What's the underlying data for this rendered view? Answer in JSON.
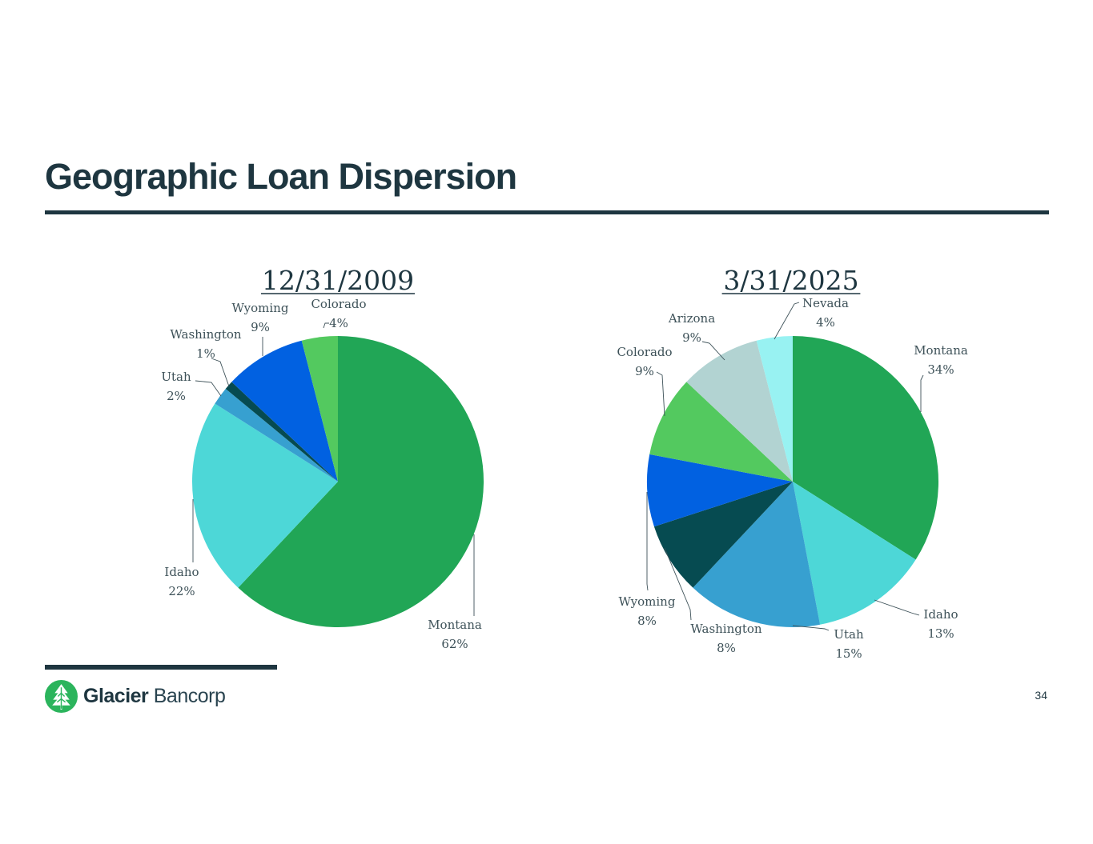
{
  "page": {
    "title": "Geographic Loan Dispersion",
    "page_number": "34"
  },
  "logo": {
    "name_bold": "Glacier",
    "name_light": "Bancorp",
    "icon": "tree-icon",
    "color": "#2bb45c"
  },
  "chart_data": [
    {
      "type": "pie",
      "title": "12/31/2009",
      "start": "12-o'clock",
      "direction": "clockwise",
      "slices": [
        {
          "label": "Montana",
          "value": 62,
          "pct": "62%",
          "color": "#21a656"
        },
        {
          "label": "Idaho",
          "value": 22,
          "pct": "22%",
          "color": "#4dd7d7"
        },
        {
          "label": "Utah",
          "value": 2,
          "pct": "2%",
          "color": "#37a0d0"
        },
        {
          "label": "Washington",
          "value": 1,
          "pct": "1%",
          "color": "#064b51"
        },
        {
          "label": "Wyoming",
          "value": 9,
          "pct": "9%",
          "color": "#0161e1"
        },
        {
          "label": "Colorado",
          "value": 4,
          "pct": "4%",
          "color": "#53c95f"
        }
      ]
    },
    {
      "type": "pie",
      "title": "3/31/2025",
      "start": "12-o'clock",
      "direction": "clockwise",
      "slices": [
        {
          "label": "Montana",
          "value": 34,
          "pct": "34%",
          "color": "#21a656"
        },
        {
          "label": "Idaho",
          "value": 13,
          "pct": "13%",
          "color": "#4dd7d7"
        },
        {
          "label": "Utah",
          "value": 15,
          "pct": "15%",
          "color": "#37a0d0"
        },
        {
          "label": "Washington",
          "value": 8,
          "pct": "8%",
          "color": "#064b51"
        },
        {
          "label": "Wyoming",
          "value": 8,
          "pct": "8%",
          "color": "#0161e1"
        },
        {
          "label": "Colorado",
          "value": 9,
          "pct": "9%",
          "color": "#53c95f"
        },
        {
          "label": "Arizona",
          "value": 9,
          "pct": "9%",
          "color": "#b2d3d2"
        },
        {
          "label": "Nevada",
          "value": 4,
          "pct": "4%",
          "color": "#98f2f2"
        }
      ]
    }
  ]
}
